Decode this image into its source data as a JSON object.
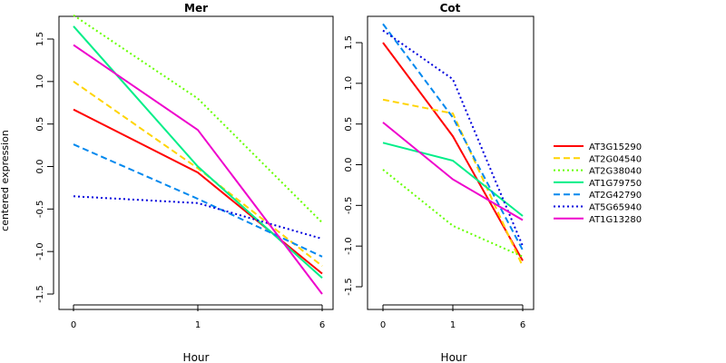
{
  "ylabel": "centered expression",
  "chart_data": [
    {
      "type": "line",
      "title": "Mer",
      "xlabel": "Hour",
      "ylabel": "centered expression",
      "x": [
        "0",
        "1",
        "6"
      ],
      "ylim": [
        -1.55,
        1.85
      ],
      "yticks": [
        "-1.5",
        "-1.0",
        "-0.5",
        "0.0",
        "0.5",
        "1.0",
        "1.5"
      ],
      "grid": false,
      "series": [
        {
          "name": "AT3G15290",
          "color": "#FF0000",
          "dash": "solid",
          "values": [
            0.67,
            -0.07,
            -1.26
          ]
        },
        {
          "name": "AT2G04540",
          "color": "#FFD400",
          "dash": "dashed",
          "values": [
            1.0,
            -0.02,
            -1.17
          ]
        },
        {
          "name": "AT2G38040",
          "color": "#66FF00",
          "dash": "dotted",
          "values": [
            1.78,
            0.8,
            -0.66
          ]
        },
        {
          "name": "AT1G79750",
          "color": "#00EE88",
          "dash": "solid",
          "values": [
            1.65,
            0.0,
            -1.31
          ]
        },
        {
          "name": "AT2G42790",
          "color": "#0088EE",
          "dash": "dashed",
          "values": [
            0.26,
            -0.38,
            -1.06
          ]
        },
        {
          "name": "AT5G65940",
          "color": "#0000DD",
          "dash": "dotted",
          "values": [
            -0.35,
            -0.43,
            -0.85
          ]
        },
        {
          "name": "AT1G13280",
          "color": "#EE00CC",
          "dash": "solid",
          "values": [
            1.43,
            0.43,
            -1.5
          ]
        }
      ]
    },
    {
      "type": "line",
      "title": "Cot",
      "xlabel": "Hour",
      "x": [
        "0",
        "1",
        "6"
      ],
      "ylim": [
        -1.55,
        1.85
      ],
      "yticks": [
        "-1.5",
        "-1.0",
        "-0.5",
        "0.0",
        "0.5",
        "1.0",
        "1.5"
      ],
      "grid": false,
      "series": [
        {
          "name": "AT3G15290",
          "color": "#FF0000",
          "dash": "solid",
          "values": [
            1.5,
            0.35,
            -1.18
          ]
        },
        {
          "name": "AT2G04540",
          "color": "#FFD400",
          "dash": "dashed",
          "values": [
            0.8,
            0.63,
            -1.25
          ]
        },
        {
          "name": "AT2G38040",
          "color": "#66FF00",
          "dash": "dotted",
          "values": [
            -0.06,
            -0.75,
            -1.13
          ]
        },
        {
          "name": "AT1G79750",
          "color": "#00EE88",
          "dash": "solid",
          "values": [
            0.27,
            0.05,
            -0.63
          ]
        },
        {
          "name": "AT2G42790",
          "color": "#0088EE",
          "dash": "dashed",
          "values": [
            1.73,
            0.58,
            -1.05
          ]
        },
        {
          "name": "AT5G65940",
          "color": "#0000DD",
          "dash": "dotted",
          "values": [
            1.65,
            1.05,
            -1.0
          ]
        },
        {
          "name": "AT1G13280",
          "color": "#EE00CC",
          "dash": "solid",
          "values": [
            0.52,
            -0.18,
            -0.68
          ]
        }
      ]
    }
  ],
  "legend": {
    "placement": "right",
    "entries": [
      {
        "name": "AT3G15290",
        "color": "#FF0000",
        "dash": "solid"
      },
      {
        "name": "AT2G04540",
        "color": "#FFD400",
        "dash": "dashed"
      },
      {
        "name": "AT2G38040",
        "color": "#66FF00",
        "dash": "dotted"
      },
      {
        "name": "AT1G79750",
        "color": "#00EE88",
        "dash": "solid"
      },
      {
        "name": "AT2G42790",
        "color": "#0088EE",
        "dash": "dashed"
      },
      {
        "name": "AT5G65940",
        "color": "#0000DD",
        "dash": "dotted"
      },
      {
        "name": "AT1G13280",
        "color": "#EE00CC",
        "dash": "solid"
      }
    ]
  }
}
